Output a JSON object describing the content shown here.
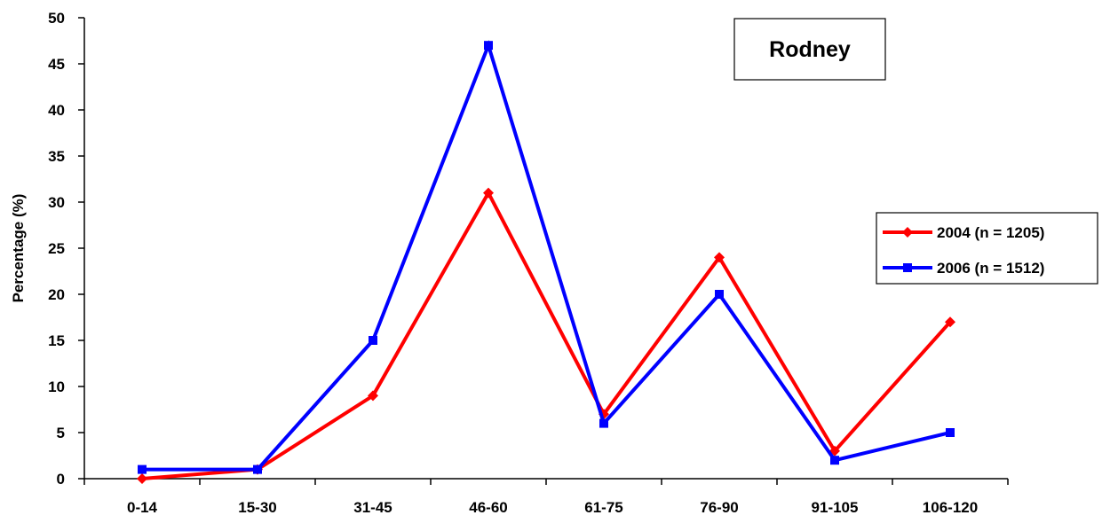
{
  "chart_data": {
    "type": "line",
    "title": "Rodney",
    "xlabel": "",
    "ylabel": "Percentage (%)",
    "categories": [
      "0-14",
      "15-30",
      "31-45",
      "46-60",
      "61-75",
      "76-90",
      "91-105",
      "106-120"
    ],
    "ylim": [
      0,
      50
    ],
    "yticks": [
      "0",
      "5",
      "10",
      "15",
      "20",
      "25",
      "30",
      "35",
      "40",
      "45",
      "50"
    ],
    "grid": false,
    "legend_position": "right",
    "series": [
      {
        "name": "2004 (n = 1205)",
        "color": "#ff0000",
        "marker": "diamond",
        "values": [
          0,
          1,
          9,
          31,
          7,
          24,
          3,
          17
        ]
      },
      {
        "name": "2006 (n = 1512)",
        "color": "#0000ff",
        "marker": "square",
        "values": [
          1,
          1,
          15,
          47,
          6,
          20,
          2,
          5
        ]
      }
    ]
  }
}
